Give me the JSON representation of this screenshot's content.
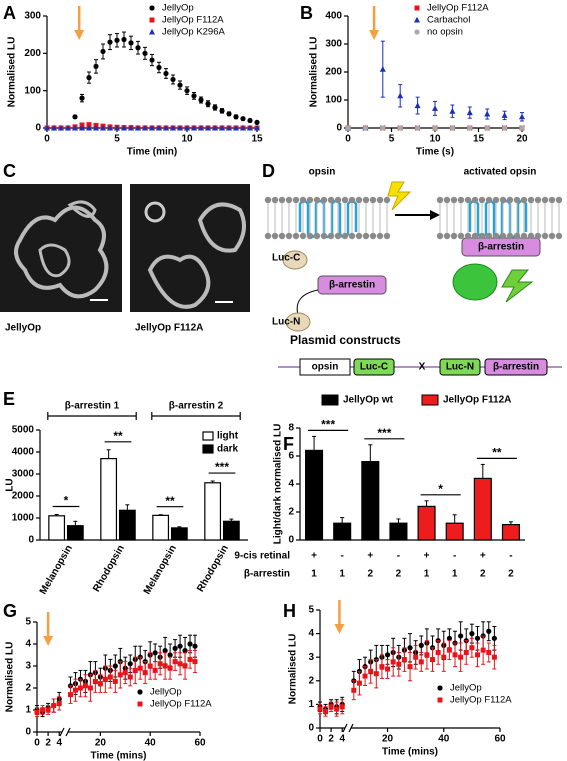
{
  "chart_data": [
    {
      "type": "scatter",
      "panel_label": "A",
      "xlabel": "Time (min)",
      "ylabel": "Normalised LU",
      "x": [
        0,
        0.5,
        1,
        1.5,
        2,
        2.5,
        3,
        3.5,
        4,
        4.5,
        5,
        5.5,
        6,
        6.5,
        7,
        7.5,
        8,
        8.5,
        9,
        9.5,
        10,
        10.5,
        11,
        11.5,
        12,
        12.5,
        13,
        13.5,
        14,
        14.5,
        15
      ],
      "xlim": [
        0,
        15
      ],
      "xticks": [
        0,
        5,
        10,
        15
      ],
      "ylim": [
        0,
        300
      ],
      "yticks": [
        0,
        100,
        200,
        300
      ],
      "marker_x": 2.3,
      "legend": "upper right",
      "series": [
        {
          "name": "JellyOp",
          "color": "#000000",
          "marker": "circle",
          "values": [
            0,
            0,
            0,
            0,
            30,
            80,
            135,
            165,
            205,
            230,
            235,
            237,
            228,
            215,
            200,
            182,
            162,
            146,
            130,
            115,
            100,
            86,
            75,
            65,
            55,
            46,
            38,
            30,
            25,
            20,
            15
          ],
          "errors": [
            0,
            0,
            0,
            0,
            4,
            10,
            15,
            18,
            20,
            20,
            18,
            20,
            18,
            17,
            16,
            15,
            14,
            13,
            12,
            11,
            10,
            9,
            8,
            8,
            7,
            6,
            5,
            5,
            4,
            4,
            3
          ]
        },
        {
          "name": "JellyOp F112A",
          "color": "#e8141a",
          "marker": "square",
          "values": [
            0,
            0,
            0,
            0,
            3,
            8,
            9,
            7,
            5,
            3,
            2,
            1,
            1,
            0,
            0,
            0,
            0,
            0,
            0,
            0,
            0,
            0,
            0,
            0,
            0,
            0,
            0,
            0,
            0,
            0,
            0
          ]
        },
        {
          "name": "JellyOp K296A",
          "color": "#1f2fbf",
          "marker": "triangle",
          "values": [
            0,
            0,
            0,
            0,
            0,
            0,
            0,
            0,
            0,
            0,
            0,
            0,
            0,
            0,
            0,
            0,
            0,
            0,
            0,
            0,
            0,
            0,
            0,
            0,
            0,
            0,
            0,
            0,
            0,
            0,
            0
          ]
        }
      ]
    },
    {
      "type": "scatter",
      "panel_label": "B",
      "xlabel": "Time (s)",
      "ylabel": "Normalised LU",
      "x": [
        0,
        2,
        4,
        6,
        8,
        10,
        12,
        14,
        16,
        18,
        20
      ],
      "xlim": [
        0,
        20
      ],
      "xticks": [
        0,
        5,
        10,
        15,
        20
      ],
      "ylim": [
        0,
        400
      ],
      "yticks": [
        0,
        100,
        200,
        300,
        400
      ],
      "marker_x": 3,
      "legend": "upper right",
      "series": [
        {
          "name": "JellyOp F112A",
          "color": "#e8141a",
          "marker": "square",
          "values": [
            0,
            0,
            0,
            0,
            0,
            0,
            0,
            0,
            0,
            0,
            0
          ]
        },
        {
          "name": "Carbachol",
          "color": "#1a2fb5",
          "marker": "triangle",
          "values": [
            0,
            0,
            210,
            115,
            80,
            70,
            60,
            55,
            50,
            45,
            40
          ],
          "errors": [
            0,
            0,
            100,
            40,
            30,
            25,
            22,
            20,
            18,
            15,
            15
          ]
        },
        {
          "name": "no opsin",
          "color": "#aaaaaa",
          "marker": "circle",
          "values": [
            0,
            0,
            0,
            0,
            0,
            0,
            0,
            0,
            0,
            0,
            0
          ]
        }
      ]
    },
    {
      "type": "bar",
      "panel_label": "E",
      "ylabel": "LU",
      "categories": [
        "Melanopsin",
        "Rhodopsin",
        "Melanopsin",
        "Rhodopsin"
      ],
      "groups": [
        "β-arrestin 1",
        "β-arrestin 2"
      ],
      "ylim": [
        0,
        5000
      ],
      "yticks": [
        0,
        1000,
        2000,
        3000,
        4000,
        5000
      ],
      "legend": "upper right",
      "significance": [
        "*",
        "**",
        "**",
        "***"
      ],
      "series": [
        {
          "name": "light",
          "color": "#ffffff",
          "values": [
            1100,
            3700,
            1120,
            2600
          ],
          "errors": [
            60,
            400,
            30,
            80
          ]
        },
        {
          "name": "dark",
          "color": "#000000",
          "values": [
            650,
            1350,
            550,
            850
          ],
          "errors": [
            200,
            250,
            50,
            100
          ]
        }
      ]
    },
    {
      "type": "bar",
      "panel_label": "F",
      "ylabel": "Light/dark normalised LU",
      "ylim": [
        0,
        8
      ],
      "yticks": [
        0,
        2,
        4,
        6,
        8
      ],
      "legend": "upper center",
      "significance": [
        "***",
        "***",
        "*",
        "**"
      ],
      "rows": [
        {
          "label": "9-cis retinal",
          "values": [
            "+",
            "-",
            "+",
            "-",
            "+",
            "-",
            "+",
            "-"
          ]
        },
        {
          "label": "β-arrestin",
          "values": [
            1,
            1,
            2,
            2,
            1,
            1,
            2,
            2
          ]
        }
      ],
      "series": [
        {
          "name": "JellyOp wt",
          "color": "#000000",
          "values": [
            6.4,
            1.2,
            5.6,
            1.2
          ],
          "errors": [
            1.0,
            0.4,
            1.2,
            0.3
          ]
        },
        {
          "name": "JellyOp F112A",
          "color": "#ee1c1c",
          "values": [
            2.4,
            1.2,
            4.4,
            1.1
          ],
          "errors": [
            0.4,
            0.6,
            1.0,
            0.2
          ]
        }
      ]
    },
    {
      "type": "scatter",
      "panel_label": "G",
      "xlabel": "Time (mins)",
      "ylabel": "Normalised LU",
      "x": [
        0,
        1,
        2,
        3,
        4,
        8,
        10,
        12,
        14,
        16,
        18,
        20,
        22,
        24,
        26,
        28,
        30,
        32,
        34,
        36,
        38,
        40,
        42,
        44,
        46,
        48,
        50,
        52,
        54,
        56,
        58
      ],
      "xlim": [
        0,
        60
      ],
      "xbreak": [
        4.5,
        7
      ],
      "xticks": [
        0,
        2,
        4,
        20,
        40,
        60
      ],
      "ylim": [
        0,
        5
      ],
      "yticks": [
        0,
        1,
        2,
        3,
        4,
        5
      ],
      "marker_x": 2,
      "legend": "lower right",
      "series": [
        {
          "name": "JellyOp",
          "color": "#000000",
          "marker": "circle",
          "values": [
            1.0,
            0.9,
            1.1,
            1.2,
            1.5,
            2.1,
            2.2,
            2.4,
            2.3,
            2.6,
            2.7,
            2.5,
            2.9,
            2.8,
            3.0,
            3.2,
            2.9,
            3.1,
            3.3,
            3.4,
            3.2,
            3.5,
            3.6,
            3.4,
            3.7,
            3.5,
            3.8,
            3.9,
            3.7,
            4.0,
            3.9
          ],
          "errors": [
            0.2,
            0.2,
            0.2,
            0.3,
            0.3,
            0.4,
            0.5,
            0.4,
            0.5,
            0.6,
            0.5,
            0.4,
            0.6,
            0.5,
            0.5,
            0.6,
            0.5,
            0.4,
            0.6,
            0.5,
            0.5,
            0.6,
            0.4,
            0.5,
            0.6,
            0.5,
            0.4,
            0.5,
            0.6,
            0.4,
            0.5
          ]
        },
        {
          "name": "JellyOp F112A",
          "color": "#e8141a",
          "marker": "square",
          "values": [
            0.9,
            1.0,
            1.0,
            1.2,
            1.3,
            1.7,
            1.9,
            2.0,
            2.1,
            2.0,
            2.3,
            2.2,
            2.4,
            2.5,
            2.3,
            2.6,
            2.7,
            2.5,
            2.8,
            2.9,
            2.7,
            3.0,
            2.8,
            3.1,
            3.0,
            2.9,
            3.2,
            3.1,
            3.0,
            3.3,
            3.2
          ],
          "errors": [
            0.2,
            0.2,
            0.2,
            0.3,
            0.3,
            0.4,
            0.5,
            0.4,
            0.5,
            0.6,
            0.5,
            0.4,
            0.6,
            0.5,
            0.5,
            0.6,
            0.5,
            0.4,
            0.6,
            0.5,
            0.5,
            0.6,
            0.4,
            0.5,
            0.6,
            0.5,
            0.4,
            0.5,
            0.6,
            0.4,
            0.5
          ]
        }
      ]
    },
    {
      "type": "scatter",
      "panel_label": "H",
      "xlabel": "Time (mins)",
      "ylabel": "Normalised LU",
      "x": [
        0,
        1,
        2,
        3,
        4,
        8,
        10,
        12,
        14,
        16,
        18,
        20,
        22,
        24,
        26,
        28,
        30,
        32,
        34,
        36,
        38,
        40,
        42,
        44,
        46,
        48,
        50,
        52,
        54,
        56,
        58
      ],
      "xlim": [
        0,
        60
      ],
      "xbreak": [
        4.5,
        7
      ],
      "xticks": [
        0,
        2,
        4,
        20,
        40,
        60
      ],
      "ylim": [
        0,
        5
      ],
      "yticks": [
        0,
        1,
        2,
        3,
        4,
        5
      ],
      "marker_x": 3.5,
      "legend": "lower right",
      "series": [
        {
          "name": "JellyOp",
          "color": "#000000",
          "marker": "circle",
          "values": [
            0.9,
            0.8,
            1.0,
            0.9,
            1.0,
            2.0,
            2.4,
            2.6,
            2.8,
            2.9,
            3.0,
            3.1,
            3.2,
            3.0,
            3.3,
            3.4,
            3.2,
            3.5,
            3.6,
            3.4,
            3.7,
            3.5,
            3.8,
            3.6,
            3.9,
            3.7,
            4.0,
            3.8,
            3.9,
            4.1,
            3.8
          ],
          "errors": [
            0.2,
            0.2,
            0.2,
            0.3,
            0.3,
            0.4,
            0.5,
            0.4,
            0.5,
            0.6,
            0.5,
            0.4,
            0.6,
            0.5,
            0.5,
            0.6,
            0.5,
            0.4,
            0.6,
            0.5,
            0.5,
            0.6,
            0.4,
            0.5,
            0.6,
            0.5,
            0.4,
            0.5,
            0.6,
            0.4,
            0.5
          ]
        },
        {
          "name": "JellyOp F112A",
          "color": "#e8141a",
          "marker": "square",
          "values": [
            0.8,
            0.7,
            0.9,
            0.8,
            0.9,
            1.6,
            1.9,
            2.2,
            2.4,
            2.3,
            2.6,
            2.5,
            2.8,
            2.7,
            2.9,
            2.6,
            3.0,
            2.8,
            3.1,
            2.9,
            3.2,
            3.0,
            3.3,
            3.1,
            3.0,
            3.2,
            3.4,
            3.1,
            3.3,
            3.2,
            3.0
          ],
          "errors": [
            0.2,
            0.2,
            0.2,
            0.3,
            0.3,
            0.4,
            0.5,
            0.4,
            0.5,
            0.6,
            0.5,
            0.4,
            0.6,
            0.5,
            0.5,
            0.6,
            0.5,
            0.4,
            0.6,
            0.5,
            0.5,
            0.6,
            0.4,
            0.5,
            0.6,
            0.5,
            0.4,
            0.5,
            0.6,
            0.4,
            0.5
          ]
        }
      ]
    }
  ],
  "panel_c": {
    "label": "C",
    "images": [
      "JellyOp",
      "JellyOp F112A"
    ]
  },
  "panel_d": {
    "label": "D",
    "opsin": "opsin",
    "activated_opsin": "activated opsin",
    "luc_c": "Luc-C",
    "arrestin_left": "β-arrestin",
    "luc_n": "Luc-N",
    "arrestin_right": "β-arrestin",
    "plasmid_title": "Plasmid constructs",
    "plasmid": [
      "opsin",
      "Luc-C",
      "X",
      "Luc-N",
      "β-arrestin"
    ]
  }
}
